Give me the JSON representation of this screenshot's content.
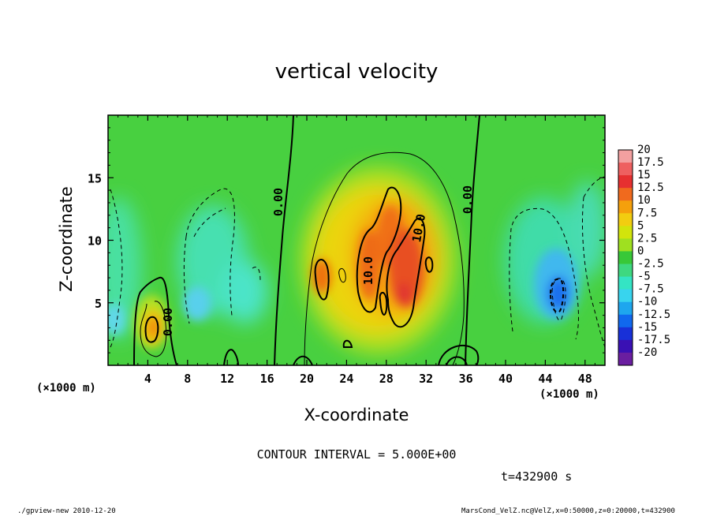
{
  "chart_data": {
    "type": "heatmap",
    "title": "vertical velocity",
    "xlabel": "X-coordinate",
    "ylabel": "Z-coordinate",
    "x_unit": "(×1000 m)",
    "xlim": [
      0,
      50
    ],
    "ylim": [
      0,
      20
    ],
    "x_ticks": [
      "4",
      "8",
      "12",
      "16",
      "20",
      "24",
      "28",
      "32",
      "36",
      "40",
      "44",
      "48"
    ],
    "y_ticks": [
      "5",
      "10",
      "15"
    ],
    "colorbar": {
      "labels": [
        "20",
        "17.5",
        "15",
        "12.5",
        "10",
        "7.5",
        "5",
        "2.5",
        "0",
        "-2.5",
        "-5",
        "-7.5",
        "-10",
        "-12.5",
        "-15",
        "-17.5",
        "-20"
      ],
      "colors": [
        "#f3a0a0",
        "#ee6060",
        "#e63030",
        "#f06a1e",
        "#f5a00c",
        "#f2cd10",
        "#d2e40c",
        "#9fe020",
        "#38c838",
        "#3ed880",
        "#34e4c4",
        "#38d4ee",
        "#1ea6ee",
        "#1068ee",
        "#1830d8",
        "#3a10b4",
        "#6a1ea0"
      ]
    },
    "contour_labels": [
      "0.00",
      "0.00",
      "0.00",
      "10.0",
      "10.0"
    ],
    "contour_interval": "CONTOUR INTERVAL = 5.000E+00",
    "time": "t=432900 s",
    "features": [
      {
        "type": "updraft",
        "x": 4.5,
        "z": 3.2,
        "peak": 10
      },
      {
        "type": "updraft",
        "x": 29.5,
        "z": 7,
        "peak": 17
      },
      {
        "type": "updraft",
        "x": 22,
        "z": 7.5,
        "peak": 12
      },
      {
        "type": "downdraft",
        "x": 45,
        "z": 5.5,
        "peak": -12
      },
      {
        "type": "downdraft",
        "x": 9,
        "z": 5,
        "peak": -6
      }
    ]
  },
  "footer": {
    "left": "./gpview-new  2010-12-20",
    "right": "MarsCond_VelZ.nc@VelZ,x=0:50000,z=0:20000,t=432900"
  }
}
